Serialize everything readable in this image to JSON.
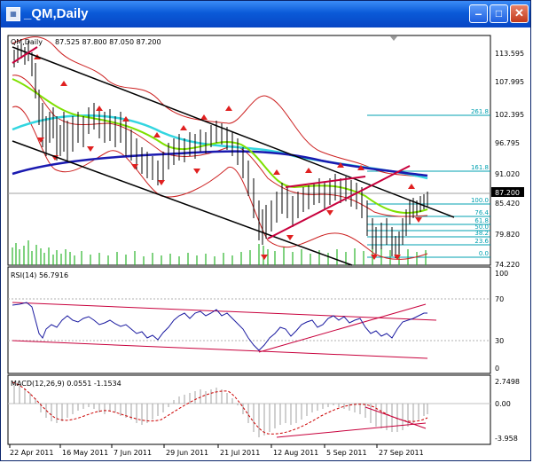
{
  "window": {
    "title": "_QM,Daily",
    "app_icon": "chart-window-icon"
  },
  "main_panel": {
    "label": "QM,Daily",
    "ohlc": "87.525 87.800 87.050 87.200",
    "price_ticks": [
      "113.595",
      "107.995",
      "102.395",
      "96.795",
      "91.020",
      "85.420",
      "79.820",
      "74.220"
    ],
    "current_price": "87.200",
    "fib_levels": [
      "261.8",
      "161.8",
      "100.0",
      "76.4",
      "61.8",
      "50.0",
      "38.2",
      "23.6",
      "0.0"
    ]
  },
  "rsi_panel": {
    "label": "RSI(14) 56.7916",
    "ticks": [
      "100",
      "70",
      "30",
      "0"
    ]
  },
  "macd_panel": {
    "label": "MACD(12,26,9) 0.0551 -1.1534",
    "ticks": [
      "2.7498",
      "0.00",
      "-3.958"
    ]
  },
  "date_axis": [
    "22 Apr 2011",
    "16 May 2011",
    "7 Jun 2011",
    "29 Jun 2011",
    "21 Jul 2011",
    "12 Aug 2011",
    "5 Sep 2011",
    "27 Sep 2011"
  ],
  "colors": {
    "title_bar": "#0a5ad8",
    "channel": "#000000",
    "trendline": "#c8003c",
    "ma_cyan": "#33d6e0",
    "ma_blue": "#1a1ab0",
    "ma_green": "#7fe000",
    "bollinger": "#cc2020",
    "fib": "#00a0b0",
    "rsi_line": "#1a1aa0",
    "macd_signal": "#cc0000"
  }
}
